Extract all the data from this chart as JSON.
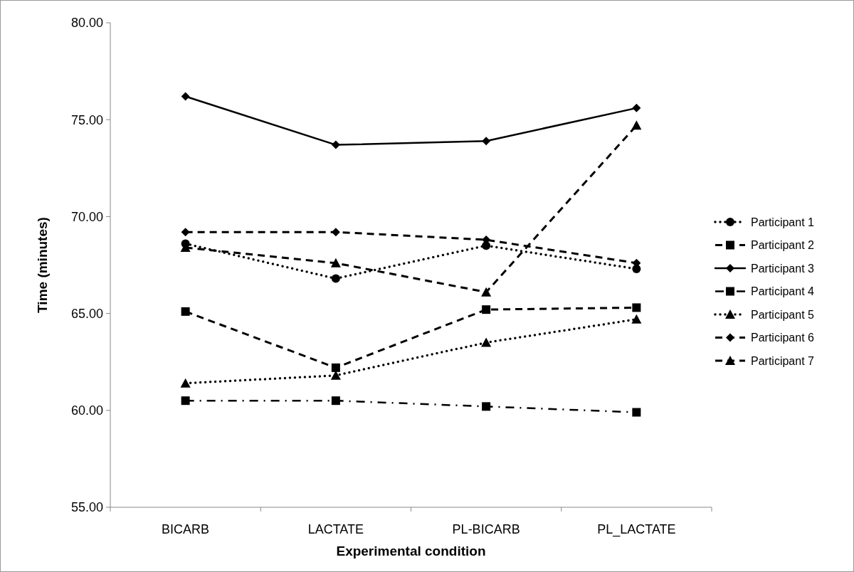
{
  "chart_data": {
    "type": "line",
    "xlabel": "Experimental condition",
    "ylabel": "Time (minutes)",
    "categories": [
      "BICARB",
      "LACTATE",
      "PL-BICARB",
      "PL_LACTATE"
    ],
    "ylim": [
      55,
      80
    ],
    "yticks": [
      {
        "value": 55,
        "label": "55.00"
      },
      {
        "value": 60,
        "label": "60.00"
      },
      {
        "value": 65,
        "label": "65.00"
      },
      {
        "value": 70,
        "label": "70.00"
      },
      {
        "value": 75,
        "label": "75.00"
      },
      {
        "value": 80,
        "label": "80.00"
      }
    ],
    "grid": false,
    "legend": "right",
    "series": [
      {
        "name": "Participant 1",
        "color": "#000000",
        "marker": "circle",
        "line_style": "dotted",
        "values": [
          68.6,
          66.8,
          68.5,
          67.3
        ]
      },
      {
        "name": "Participant 2",
        "color": "#000000",
        "marker": "square",
        "line_style": "dashed",
        "values": [
          65.1,
          62.2,
          65.2,
          65.3
        ]
      },
      {
        "name": "Participant 3",
        "color": "#000000",
        "marker": "diamond",
        "line_style": "solid",
        "values": [
          76.2,
          73.7,
          73.9,
          75.6
        ]
      },
      {
        "name": "Participant 4",
        "color": "#000000",
        "marker": "square",
        "line_style": "dashdot",
        "values": [
          60.5,
          60.5,
          60.2,
          59.9
        ]
      },
      {
        "name": "Participant 5",
        "color": "#000000",
        "marker": "triangle",
        "line_style": "dotted",
        "values": [
          61.4,
          61.8,
          63.5,
          64.7
        ]
      },
      {
        "name": "Participant 6",
        "color": "#000000",
        "marker": "diamond",
        "line_style": "dashed",
        "values": [
          69.2,
          69.2,
          68.8,
          67.6
        ]
      },
      {
        "name": "Participant 7",
        "color": "#000000",
        "marker": "triangle",
        "line_style": "dashed",
        "values": [
          68.4,
          67.6,
          66.1,
          74.7
        ]
      }
    ]
  }
}
